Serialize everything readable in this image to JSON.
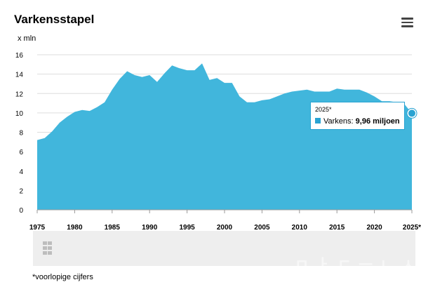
{
  "title": "Varkensstapel",
  "unit_label": "x mln",
  "footnote": "*voorlopige cijfers",
  "watermark": "ㅁ ㅏ ㄷ ㅡ ㄴ ㅅ",
  "tooltip": {
    "date": "2025*",
    "series_label": "Varkens:",
    "value_text": "9,96 miljoen"
  },
  "colors": {
    "area": "#41b6dc",
    "accent": "#2aa3d2",
    "grid": "#dddddd",
    "band": "#eeeeee"
  },
  "chart_data": {
    "type": "area",
    "title": "Varkensstapel",
    "ylabel": "x mln",
    "xlabel": "",
    "ylim": [
      0,
      16
    ],
    "yticks": [
      0,
      2,
      4,
      6,
      8,
      10,
      12,
      14,
      16
    ],
    "xlim": [
      1975,
      2025
    ],
    "xticks": [
      {
        "value": 1975,
        "label": "1975"
      },
      {
        "value": 1980,
        "label": "1980"
      },
      {
        "value": 1985,
        "label": "1985"
      },
      {
        "value": 1990,
        "label": "1990"
      },
      {
        "value": 1995,
        "label": "1995"
      },
      {
        "value": 2000,
        "label": "2000"
      },
      {
        "value": 2005,
        "label": "2005"
      },
      {
        "value": 2010,
        "label": "2010"
      },
      {
        "value": 2015,
        "label": "2015"
      },
      {
        "value": 2020,
        "label": "2020"
      },
      {
        "value": 2025,
        "label": "2025*"
      }
    ],
    "grid": true,
    "series": [
      {
        "x": [
          1975,
          1976,
          1977,
          1978,
          1979,
          1980,
          1981,
          1982,
          1983,
          1984,
          1985,
          1986,
          1987,
          1988,
          1989,
          1990,
          1991,
          1992,
          1993,
          1994,
          1995,
          1996,
          1997,
          1998,
          1999,
          2000,
          2001,
          2002,
          2003,
          2004,
          2005,
          2006,
          2007,
          2008,
          2009,
          2010,
          2011,
          2012,
          2013,
          2014,
          2015,
          2016,
          2017,
          2018,
          2019,
          2020,
          2021,
          2022,
          2023,
          2024,
          2025
        ],
        "values": [
          7.2,
          7.4,
          8.1,
          9.0,
          9.6,
          10.1,
          10.3,
          10.2,
          10.6,
          11.1,
          12.4,
          13.5,
          14.3,
          13.9,
          13.7,
          13.9,
          13.2,
          14.1,
          14.9,
          14.6,
          14.4,
          14.4,
          15.1,
          13.4,
          13.6,
          13.1,
          13.1,
          11.7,
          11.1,
          11.1,
          11.3,
          11.4,
          11.7,
          12.0,
          12.2,
          12.3,
          12.4,
          12.2,
          12.2,
          12.2,
          12.5,
          12.4,
          12.4,
          12.4,
          12.1,
          11.7,
          11.2,
          11.2,
          11.1,
          10.9,
          9.96
        ]
      }
    ],
    "highlight": {
      "x": 2025,
      "value": 9.96
    }
  }
}
